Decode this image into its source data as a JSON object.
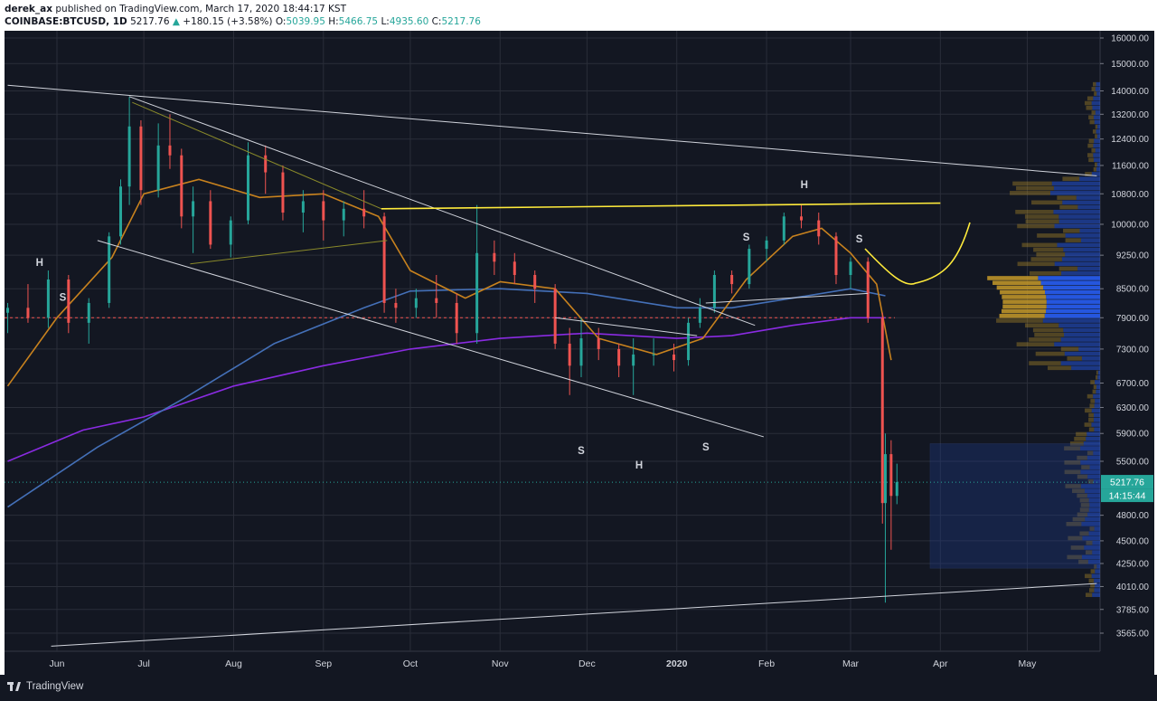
{
  "header": {
    "author": "derek_ax",
    "published_text": "published on TradingView.com, March 17, 2020 18:44:17 KST",
    "symbol": "COINBASE:BTCUSD, 1D",
    "last": "5217.76",
    "change": "+180.15 (+3.58%)",
    "o_label": "O:",
    "o_value": "5039.95",
    "h_label": "H:",
    "h_value": "5466.75",
    "l_label": "L:",
    "l_value": "4935.60",
    "c_label": "C:",
    "c_value": "5217.76"
  },
  "footer": {
    "brand": "TradingView"
  },
  "colors": {
    "background": "#131722",
    "grid": "#2a2e39",
    "up": "#26a69a",
    "down": "#ef5350",
    "ma_orange": "#c8821e",
    "ma_blue": "#4470b8",
    "ma_purple": "#8a2be2",
    "yellow": "#ffeb3b",
    "price_tag": "#26a69a",
    "vp_blue": "#2962ff",
    "vp_orange": "#c79a29"
  },
  "chart_data": {
    "type": "candlestick",
    "title": "",
    "xlabel": "",
    "ylabel": "",
    "ylim": [
      3400,
      16300
    ],
    "y_scale": "log",
    "x_ticks": [
      "Jun",
      "Jul",
      "Aug",
      "Sep",
      "Oct",
      "Nov",
      "Dec",
      "2020",
      "Feb",
      "Mar",
      "Apr",
      "May"
    ],
    "y_ticks": [
      "16000.00",
      "15000.00",
      "14000.00",
      "13200.00",
      "12400.00",
      "11600.00",
      "10800.00",
      "10000.00",
      "9250.00",
      "8500.00",
      "7900.00",
      "7300.00",
      "6700.00",
      "6300.00",
      "5900.00",
      "5500.00",
      "4800.00",
      "4500.00",
      "4250.00",
      "4010.00",
      "3785.00",
      "3565.00"
    ],
    "current_price_label": "5217.76",
    "countdown_label": "14:15:44",
    "horizontal_level": 7900,
    "grid": true,
    "annotations": [
      {
        "text": "H",
        "date": "2019-05-26",
        "price": 9000
      },
      {
        "text": "S",
        "date": "2019-06-03",
        "price": 8250
      },
      {
        "text": "S",
        "date": "2019-11-29",
        "price": 5600
      },
      {
        "text": "H",
        "date": "2019-12-19",
        "price": 5400
      },
      {
        "text": "S",
        "date": "2020-01-11",
        "price": 5650
      },
      {
        "text": "S",
        "date": "2020-01-25",
        "price": 9600
      },
      {
        "text": "H",
        "date": "2020-02-14",
        "price": 10950
      },
      {
        "text": "S",
        "date": "2020-03-04",
        "price": 9550
      }
    ],
    "series": [
      {
        "name": "",
        "type": "candles",
        "values": [
          [
            "2019-05-15",
            8000,
            8200,
            7600,
            8100
          ],
          [
            "2019-05-22",
            8100,
            8600,
            7800,
            7900
          ],
          [
            "2019-05-29",
            7900,
            8900,
            7700,
            8700
          ],
          [
            "2019-06-05",
            8700,
            8800,
            7600,
            7800
          ],
          [
            "2019-06-12",
            7800,
            8300,
            7400,
            8200
          ],
          [
            "2019-06-19",
            8200,
            9800,
            8100,
            9700
          ],
          [
            "2019-06-23",
            9700,
            11200,
            9500,
            11000
          ],
          [
            "2019-06-26",
            11000,
            13800,
            10500,
            12800
          ],
          [
            "2019-06-30",
            12800,
            13000,
            10500,
            10900
          ],
          [
            "2019-07-06",
            10900,
            12900,
            10700,
            12200
          ],
          [
            "2019-07-10",
            12200,
            13200,
            11500,
            11900
          ],
          [
            "2019-07-14",
            11900,
            12100,
            9900,
            10200
          ],
          [
            "2019-07-18",
            10200,
            11000,
            9300,
            10600
          ],
          [
            "2019-07-24",
            10600,
            10900,
            9400,
            9500
          ],
          [
            "2019-07-31",
            9500,
            10200,
            9200,
            10100
          ],
          [
            "2019-08-06",
            10100,
            12300,
            10000,
            11900
          ],
          [
            "2019-08-12",
            11900,
            12200,
            10800,
            11400
          ],
          [
            "2019-08-18",
            11400,
            11600,
            10100,
            10300
          ],
          [
            "2019-08-25",
            10300,
            10900,
            9800,
            10600
          ],
          [
            "2019-09-01",
            10600,
            10900,
            9600,
            10100
          ],
          [
            "2019-09-08",
            10100,
            10600,
            9700,
            10400
          ],
          [
            "2019-09-15",
            10400,
            10900,
            9900,
            10200
          ],
          [
            "2019-09-22",
            10200,
            10300,
            8000,
            8200
          ],
          [
            "2019-09-26",
            8200,
            8500,
            7800,
            8100
          ],
          [
            "2019-10-03",
            8100,
            8500,
            7900,
            8300
          ],
          [
            "2019-10-10",
            8300,
            8800,
            7900,
            8200
          ],
          [
            "2019-10-17",
            8200,
            8400,
            7400,
            7600
          ],
          [
            "2019-10-24",
            7600,
            10500,
            7400,
            9300
          ],
          [
            "2019-10-30",
            9300,
            9600,
            8800,
            9100
          ],
          [
            "2019-11-06",
            9100,
            9300,
            8600,
            8800
          ],
          [
            "2019-11-13",
            8800,
            8900,
            8200,
            8500
          ],
          [
            "2019-11-20",
            8500,
            8600,
            7300,
            7400
          ],
          [
            "2019-11-25",
            7400,
            7700,
            6500,
            7000
          ],
          [
            "2019-11-29",
            7000,
            7900,
            6800,
            7500
          ],
          [
            "2019-12-05",
            7500,
            7700,
            7100,
            7300
          ],
          [
            "2019-12-12",
            7300,
            7400,
            6800,
            7000
          ],
          [
            "2019-12-17",
            7000,
            7500,
            6500,
            7200
          ],
          [
            "2019-12-24",
            7200,
            7500,
            7000,
            7200
          ],
          [
            "2019-12-31",
            7200,
            7400,
            6900,
            7100
          ],
          [
            "2020-01-05",
            7100,
            7900,
            7000,
            7800
          ],
          [
            "2020-01-09",
            7800,
            8300,
            7700,
            8100
          ],
          [
            "2020-01-14",
            8100,
            8900,
            8000,
            8800
          ],
          [
            "2020-01-20",
            8800,
            8900,
            8400,
            8600
          ],
          [
            "2020-01-26",
            8600,
            9500,
            8500,
            9400
          ],
          [
            "2020-02-01",
            9400,
            9700,
            9100,
            9600
          ],
          [
            "2020-02-07",
            9600,
            10300,
            9500,
            10200
          ],
          [
            "2020-02-13",
            10200,
            10500,
            9900,
            10100
          ],
          [
            "2020-02-19",
            10100,
            10300,
            9500,
            9700
          ],
          [
            "2020-02-25",
            9700,
            9800,
            8600,
            8800
          ],
          [
            "2020-03-01",
            8800,
            9200,
            8500,
            9100
          ],
          [
            "2020-03-07",
            9100,
            9200,
            7800,
            7900
          ],
          [
            "2020-03-12",
            7900,
            8000,
            4700,
            4950
          ],
          [
            "2020-03-13",
            4950,
            5900,
            3850,
            5600
          ],
          [
            "2020-03-15",
            5600,
            5800,
            4400,
            5040
          ],
          [
            "2020-03-17",
            5040,
            5467,
            4936,
            5218
          ]
        ]
      },
      {
        "name": "",
        "type": "ma",
        "color": "orange"
      },
      {
        "name": "",
        "type": "ma",
        "color": "blue"
      },
      {
        "name": "",
        "type": "ma",
        "color": "purple"
      }
    ]
  }
}
